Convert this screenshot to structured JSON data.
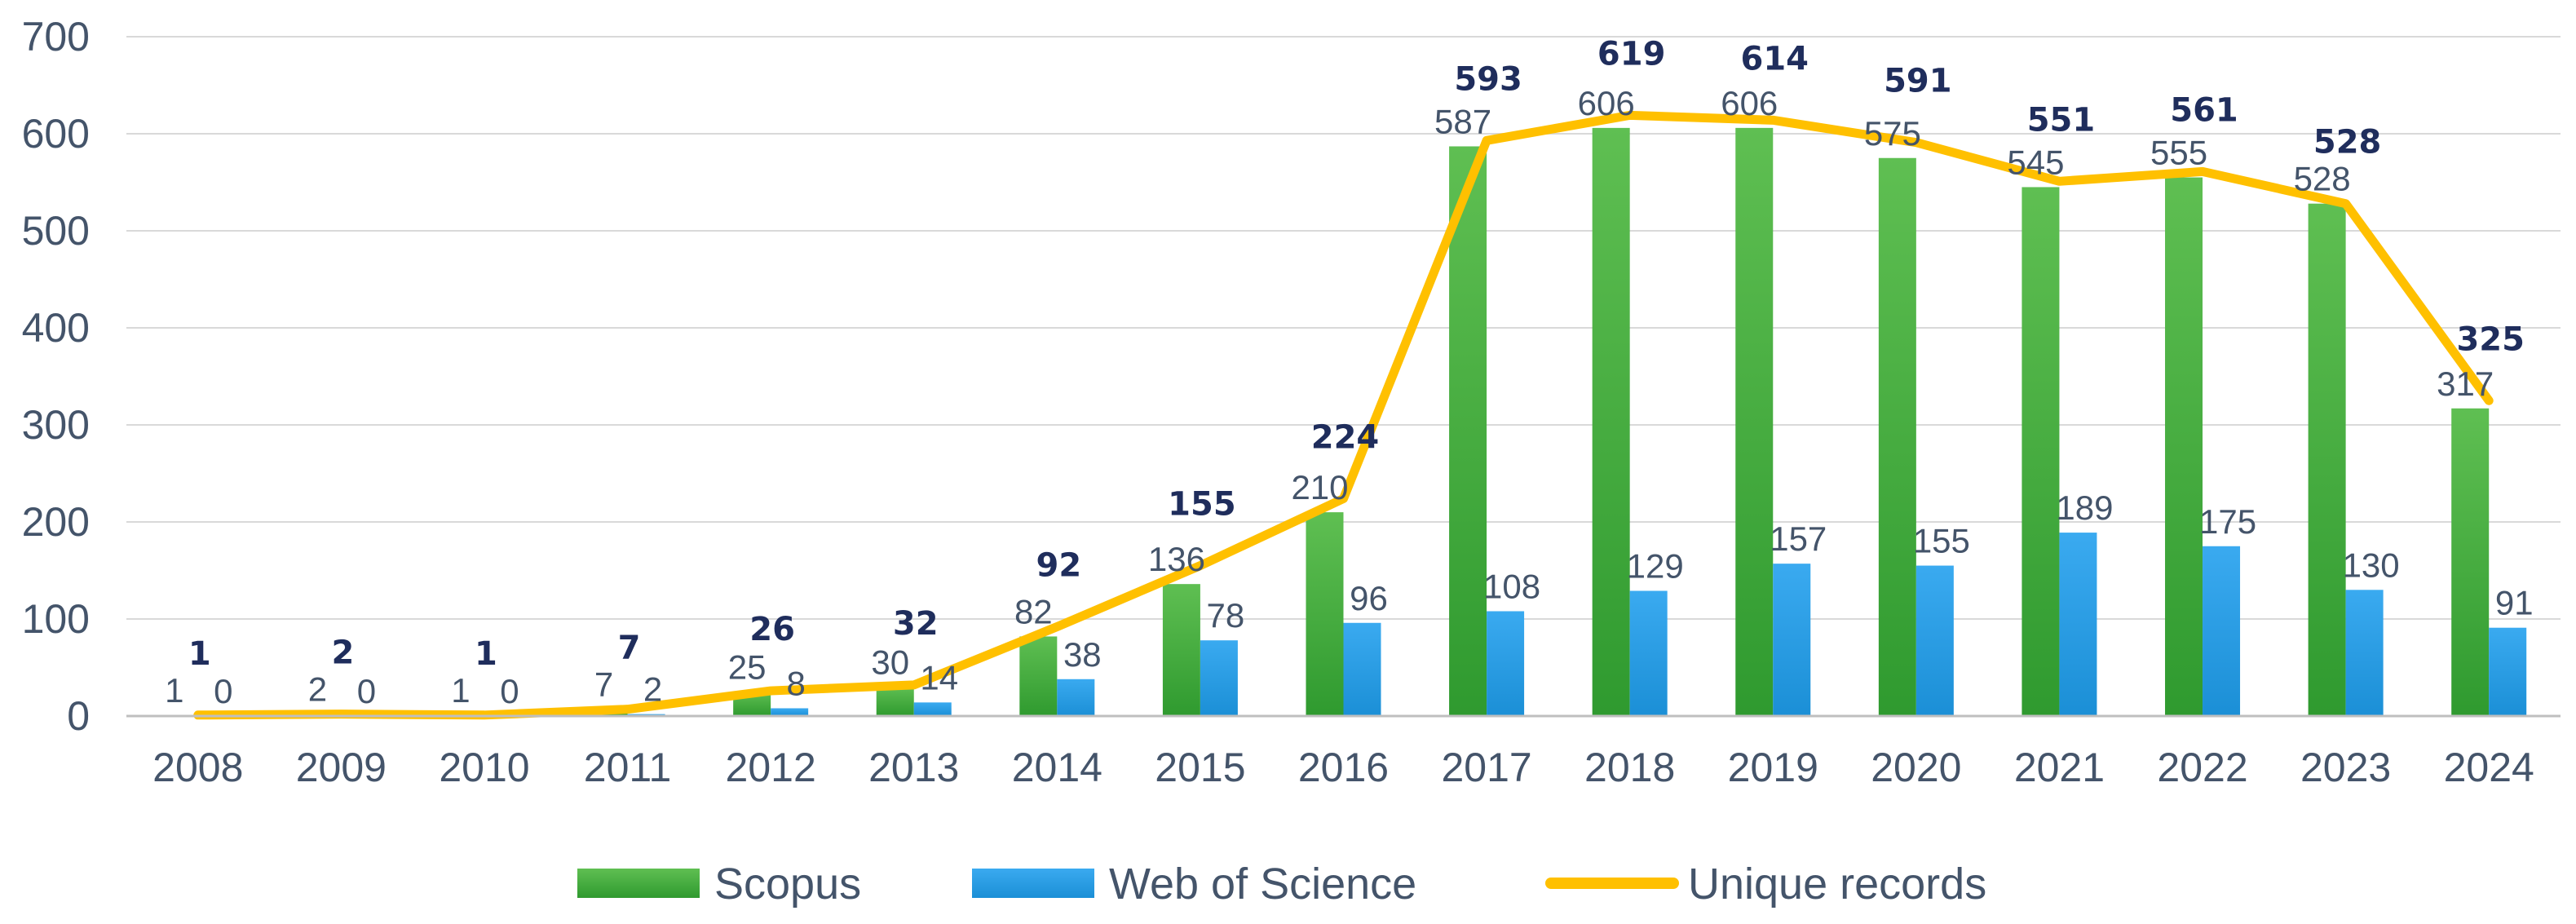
{
  "chart_data": {
    "type": "bar",
    "title": "",
    "xlabel": "",
    "ylabel": "",
    "ylim": [
      0,
      700
    ],
    "yticks": [
      0,
      100,
      200,
      300,
      400,
      500,
      600,
      700
    ],
    "grid": true,
    "legend_position": "bottom-center",
    "categories": [
      "2008",
      "2009",
      "2010",
      "2011",
      "2012",
      "2013",
      "2014",
      "2015",
      "2016",
      "2017",
      "2018",
      "2019",
      "2020",
      "2021",
      "2022",
      "2023",
      "2024"
    ],
    "series": [
      {
        "name": "Scopus",
        "kind": "bar",
        "color": "#3cab3c",
        "values": [
          1,
          2,
          1,
          7,
          25,
          30,
          82,
          136,
          210,
          587,
          606,
          606,
          575,
          545,
          555,
          528,
          317
        ]
      },
      {
        "name": "Web of Science",
        "kind": "bar",
        "color": "#1f9be0",
        "values": [
          0,
          0,
          0,
          2,
          8,
          14,
          38,
          78,
          96,
          108,
          129,
          157,
          155,
          189,
          175,
          130,
          91
        ]
      },
      {
        "name": "Unique records",
        "kind": "line",
        "color": "#ffc000",
        "values": [
          1,
          2,
          1,
          7,
          26,
          32,
          92,
          155,
          224,
          593,
          619,
          614,
          591,
          551,
          561,
          528,
          325
        ]
      }
    ]
  }
}
